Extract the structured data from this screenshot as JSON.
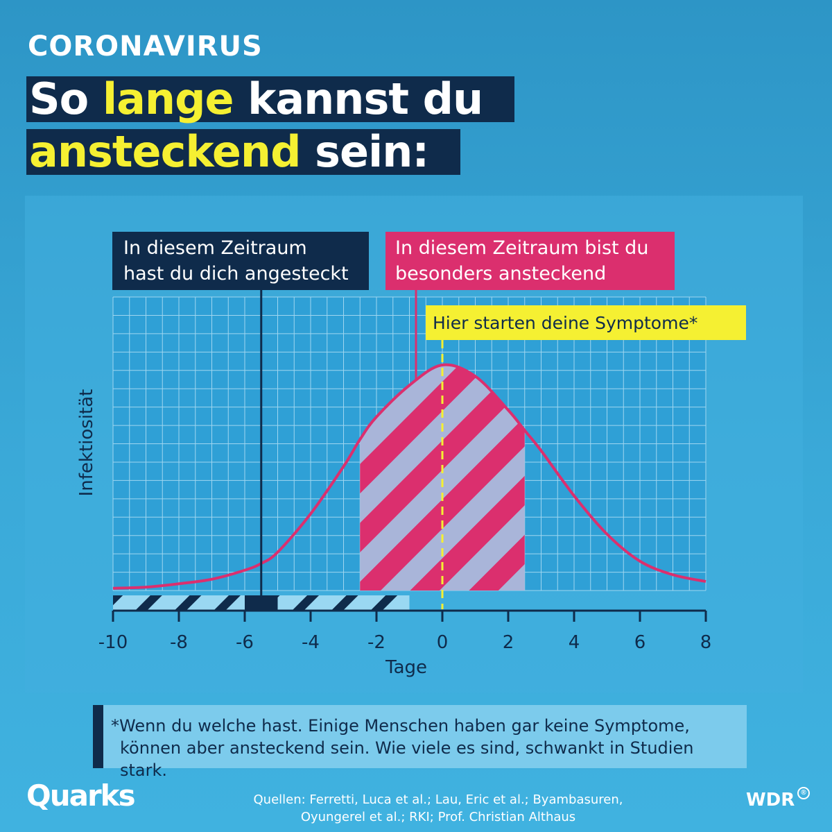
{
  "header": {
    "kicker": "CORONAVIRUS",
    "headline_line1": [
      {
        "text": "So ",
        "highlight": false
      },
      {
        "text": "lange",
        "highlight": true
      },
      {
        "text": " kannst du",
        "highlight": false
      }
    ],
    "headline_line2": [
      {
        "text": "ansteckend",
        "highlight": true
      },
      {
        "text": " sein:",
        "highlight": false
      }
    ]
  },
  "colors": {
    "navy": "#0f2b4b",
    "pink": "#db2f6e",
    "yellow": "#f5f032",
    "light_blue": "#9ad8f2",
    "hatch_light": "#a9b5d9"
  },
  "chart_data": {
    "type": "area",
    "xlabel": "Tage",
    "ylabel": "Infektiosität",
    "xlim": [
      -10,
      8
    ],
    "x_ticks": [
      "-10",
      "-8",
      "-6",
      "-4",
      "-2",
      "0",
      "2",
      "4",
      "6",
      "8"
    ],
    "ylim": [
      0,
      1
    ],
    "grid": true,
    "legend": "none",
    "series": [
      {
        "x": [
          -10,
          -9,
          -8,
          -7,
          -6,
          -5.5,
          -5,
          -4,
          -3,
          -2.5,
          -2,
          -1,
          0,
          1,
          2,
          2.5,
          3,
          4,
          5,
          6,
          7,
          8
        ],
        "y": [
          0.01,
          0.015,
          0.03,
          0.05,
          0.09,
          0.12,
          0.17,
          0.34,
          0.55,
          0.67,
          0.77,
          0.91,
          1.0,
          0.95,
          0.8,
          0.71,
          0.62,
          0.42,
          0.25,
          0.13,
          0.07,
          0.04
        ]
      }
    ],
    "highlight_interval": {
      "from": -2.5,
      "to": 2.5
    },
    "infection_period": {
      "from": -10,
      "to": -1,
      "marker": -5.5,
      "marker_band": [
        -6,
        -5
      ]
    },
    "symptom_onset": 0,
    "annotations": {
      "infection": [
        "In diesem Zeitraum",
        "hast du dich angesteckt"
      ],
      "contagious": [
        "In diesem Zeitraum bist du",
        "besonders ansteckend"
      ],
      "symptoms": "Hier starten deine Symptome*"
    }
  },
  "footnote": {
    "line1": "*Wenn du welche hast. Einige Menschen haben gar keine Symptome,",
    "line2": "können aber ansteckend sein. Wie viele es sind, schwankt in Studien stark."
  },
  "footer": {
    "brand": "Quarks",
    "sources_line1": "Quellen: Ferretti, Luca et al.; Lau, Eric et al.; Byambasuren,",
    "sources_line2": "Oyungerel et al.; RKI; Prof. Christian Althaus",
    "broadcaster": "WDR",
    "broadcaster_mark": "®"
  }
}
